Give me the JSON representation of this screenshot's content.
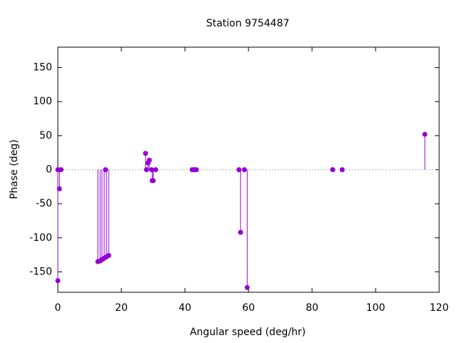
{
  "chart_data": {
    "type": "stem",
    "title": "Station 9754487",
    "x_label": "Angular speed (deg/hr)",
    "y_label": "Phase (deg)",
    "series": [
      {
        "color": "#9400d3",
        "x": [
          0,
          0,
          0.5,
          1,
          12.6,
          13.3,
          13.9,
          14.6,
          15,
          15.3,
          16,
          27.6,
          27.9,
          28.4,
          28.8,
          29.5,
          29.7,
          30,
          30.8,
          42.3,
          43,
          43.6,
          57,
          57.5,
          58.7,
          59.6,
          86.5,
          89.5,
          115.5
        ],
        "values": [
          -163,
          0,
          -28,
          0,
          -135,
          -134,
          -132,
          -130,
          0,
          -128,
          -126,
          24,
          0,
          10,
          14,
          0,
          -16,
          -16,
          0,
          0,
          0,
          0,
          0,
          -92,
          0,
          -173,
          0,
          0,
          52
        ]
      }
    ],
    "xlim": [
      0,
      120
    ],
    "xticks": [
      0,
      20,
      40,
      60,
      80,
      100,
      120
    ],
    "ylim": [
      -180,
      180
    ],
    "yticks": [
      -150,
      -100,
      -50,
      0,
      50,
      100,
      150
    ],
    "zero_axis": true
  }
}
